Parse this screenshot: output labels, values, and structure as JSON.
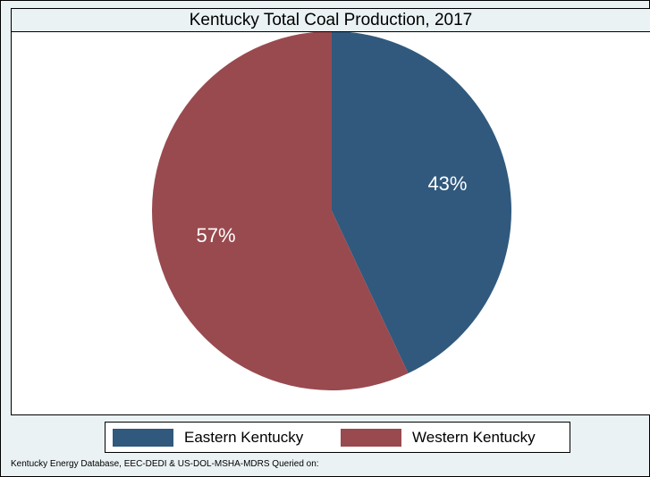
{
  "chart_data": {
    "type": "pie",
    "title": "Kentucky Total Coal Production, 2017",
    "categories": [
      "Eastern Kentucky",
      "Western Kentucky"
    ],
    "values": [
      43,
      57
    ],
    "labels": [
      "43%",
      "57%"
    ],
    "colors": [
      "#30597d",
      "#994a4f"
    ],
    "start_angle": "12 o'clock",
    "direction": "clockwise",
    "legend_position": "bottom",
    "source": "Kentucky Energy Database, EEC-DEDI & US-DOL-MSHA-MDRS Queried on:"
  }
}
